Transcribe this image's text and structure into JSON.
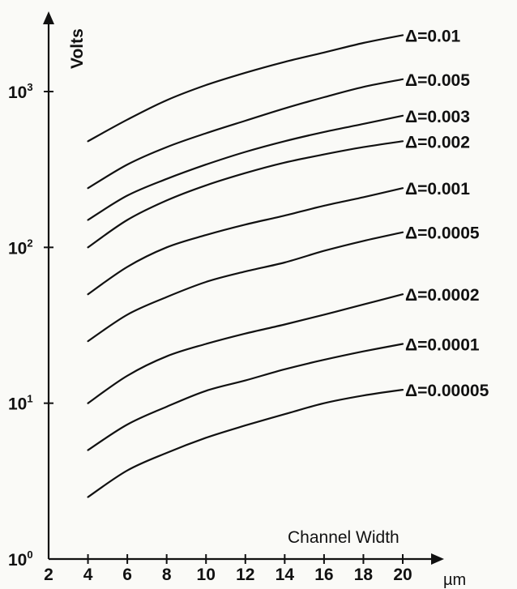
{
  "chart_data": {
    "type": "line",
    "title": "",
    "ylabel": "Volts",
    "xlabel": "Channel Width",
    "x_unit": "µm",
    "yscale": "log",
    "ylim": [
      1,
      3000
    ],
    "xlim": [
      2,
      22
    ],
    "x_ticks": [
      "2",
      "4",
      "6",
      "8",
      "10",
      "12",
      "14",
      "16",
      "18",
      "20"
    ],
    "y_ticks": [
      {
        "base": "10",
        "exp": "0",
        "value": 1
      },
      {
        "base": "10",
        "exp": "1",
        "value": 10
      },
      {
        "base": "10",
        "exp": "2",
        "value": 100
      },
      {
        "base": "10",
        "exp": "3",
        "value": 1000
      }
    ],
    "grid": false,
    "series": [
      {
        "name": "Δ=0.01",
        "x": [
          4,
          6,
          8,
          10,
          12,
          14,
          16,
          18,
          20
        ],
        "y": [
          480,
          660,
          880,
          1100,
          1320,
          1550,
          1780,
          2050,
          2300
        ]
      },
      {
        "name": "Δ=0.005",
        "x": [
          4,
          6,
          8,
          10,
          12,
          14,
          16,
          18,
          20
        ],
        "y": [
          240,
          340,
          440,
          540,
          650,
          780,
          920,
          1070,
          1200
        ]
      },
      {
        "name": "Δ=0.003",
        "x": [
          4,
          6,
          8,
          10,
          12,
          14,
          16,
          18,
          20
        ],
        "y": [
          150,
          215,
          275,
          340,
          410,
          480,
          550,
          620,
          700
        ]
      },
      {
        "name": "Δ=0.002",
        "x": [
          4,
          6,
          8,
          10,
          12,
          14,
          16,
          18,
          20
        ],
        "y": [
          100,
          150,
          200,
          250,
          300,
          350,
          395,
          440,
          480
        ]
      },
      {
        "name": "Δ=0.001",
        "x": [
          4,
          6,
          8,
          10,
          12,
          14,
          16,
          18,
          20
        ],
        "y": [
          50,
          75,
          100,
          120,
          140,
          160,
          185,
          210,
          240
        ]
      },
      {
        "name": "Δ=0.0005",
        "x": [
          4,
          6,
          8,
          10,
          12,
          14,
          16,
          18,
          20
        ],
        "y": [
          25,
          37,
          48,
          60,
          70,
          80,
          95,
          110,
          125
        ]
      },
      {
        "name": "Δ=0.0002",
        "x": [
          4,
          6,
          8,
          10,
          12,
          14,
          16,
          18,
          20
        ],
        "y": [
          10,
          15,
          20,
          24,
          28,
          32,
          37,
          43,
          50
        ]
      },
      {
        "name": "Δ=0.0001",
        "x": [
          4,
          6,
          8,
          10,
          12,
          14,
          16,
          18,
          20
        ],
        "y": [
          5,
          7.3,
          9.5,
          12,
          14,
          16.5,
          19,
          21.5,
          24
        ]
      },
      {
        "name": "Δ=0.00005",
        "x": [
          4,
          6,
          8,
          10,
          12,
          14,
          16,
          18,
          20
        ],
        "y": [
          2.5,
          3.7,
          4.8,
          6,
          7.2,
          8.5,
          10,
          11.2,
          12.2
        ]
      }
    ]
  }
}
